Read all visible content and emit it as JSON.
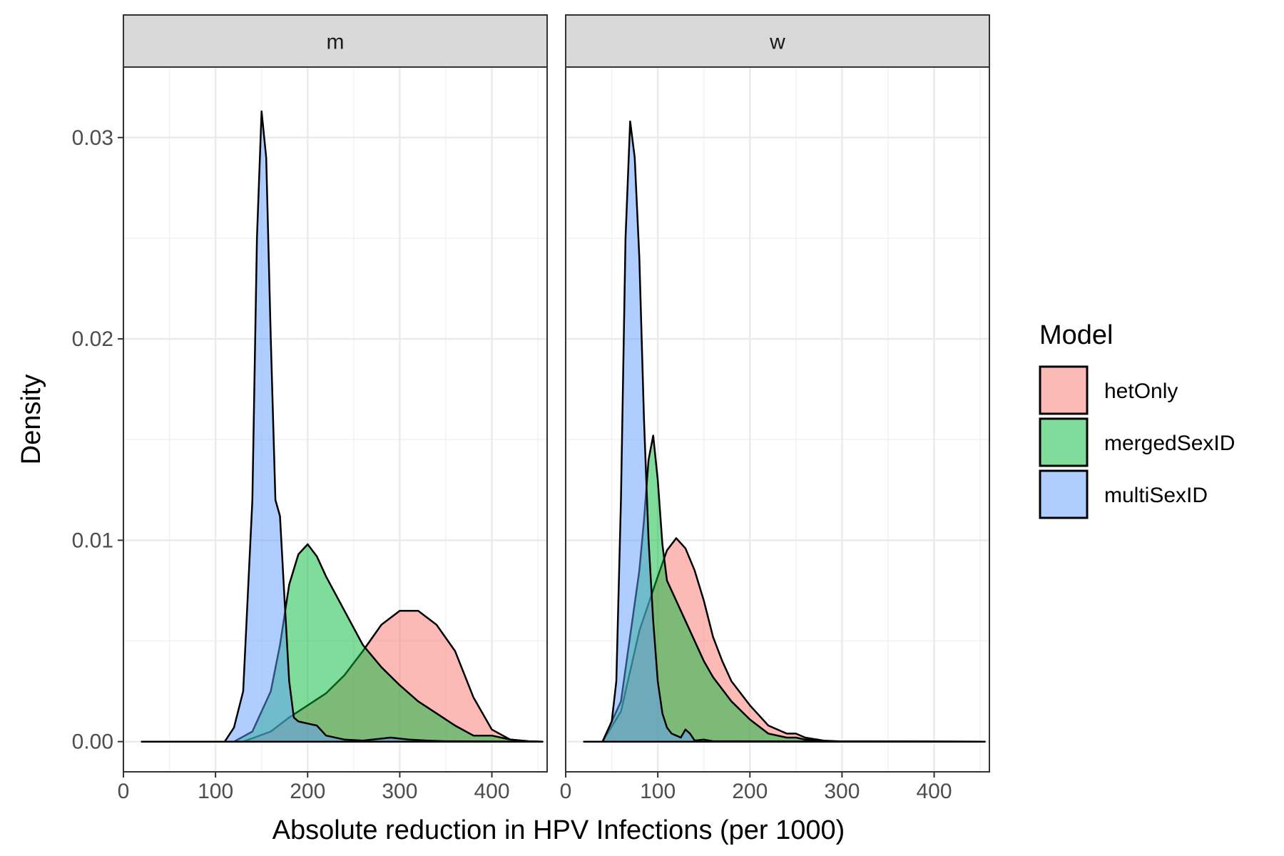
{
  "chart_data": {
    "type": "area",
    "xlabel": "Absolute reduction in HPV Infections (per 1000)",
    "ylabel": "Density",
    "xlim": [
      0,
      460
    ],
    "ylim": [
      -0.0015,
      0.0335
    ],
    "x_ticks": [
      0,
      100,
      200,
      300,
      400
    ],
    "y_ticks": [
      0.0,
      0.01,
      0.02,
      0.03
    ],
    "x_tick_labels": [
      "0",
      "100",
      "200",
      "300",
      "400"
    ],
    "y_tick_labels": [
      "0.00",
      "0.01",
      "0.02",
      "0.03"
    ],
    "grid": true,
    "legend": {
      "title": "Model",
      "position": "right"
    },
    "series_colors": {
      "hetOnly": "#F8766D",
      "mergedSexID": "#00BA38",
      "multiSexID": "#619CFF"
    },
    "fill_opacity": 0.5,
    "panels": [
      {
        "facet": "m",
        "series": [
          {
            "name": "hetOnly",
            "x": [
              20,
              130,
              160,
              180,
              200,
              220,
              240,
              260,
              280,
              300,
              320,
              340,
              360,
              380,
              400,
              420,
              440,
              455
            ],
            "y": [
              0,
              0,
              0.0005,
              0.0012,
              0.0018,
              0.0024,
              0.0033,
              0.0045,
              0.0058,
              0.0065,
              0.0065,
              0.0058,
              0.0045,
              0.0022,
              0.0006,
              0.0001,
              2e-05,
              0
            ]
          },
          {
            "name": "mergedSexID",
            "x": [
              20,
              120,
              140,
              160,
              170,
              180,
              190,
              200,
              210,
              220,
              240,
              260,
              280,
              300,
              320,
              340,
              360,
              380,
              400,
              420,
              440,
              455
            ],
            "y": [
              0,
              0,
              0.0005,
              0.0025,
              0.0048,
              0.0078,
              0.0093,
              0.0098,
              0.0092,
              0.0082,
              0.0065,
              0.0048,
              0.0037,
              0.0028,
              0.002,
              0.0014,
              0.0008,
              0.0003,
              0.0003,
              0.0001,
              2e-05,
              0
            ]
          },
          {
            "name": "multiSexID",
            "x": [
              20,
              110,
              120,
              130,
              140,
              145,
              150,
              155,
              160,
              165,
              170,
              175,
              180,
              185,
              190,
              200,
              210,
              220,
              240,
              260,
              290,
              310,
              330,
              350,
              455
            ],
            "y": [
              0,
              0,
              0.0007,
              0.0025,
              0.012,
              0.025,
              0.0313,
              0.029,
              0.02,
              0.012,
              0.0112,
              0.007,
              0.003,
              0.0012,
              0.001,
              0.0009,
              0.0008,
              0.0003,
              0.0001,
              5e-05,
              0.0002,
              0.0001,
              5e-05,
              2e-05,
              0
            ]
          }
        ]
      },
      {
        "facet": "w",
        "series": [
          {
            "name": "hetOnly",
            "x": [
              20,
              40,
              60,
              80,
              100,
              110,
              120,
              130,
              140,
              150,
              160,
              170,
              180,
              200,
              220,
              240,
              250,
              260,
              280,
              300,
              455
            ],
            "y": [
              0,
              0,
              0.0015,
              0.0055,
              0.0082,
              0.0095,
              0.0101,
              0.0096,
              0.0085,
              0.007,
              0.0052,
              0.004,
              0.003,
              0.0018,
              0.0008,
              0.0004,
              0.0004,
              0.0002,
              5e-05,
              1e-05,
              0
            ]
          },
          {
            "name": "mergedSexID",
            "x": [
              20,
              40,
              60,
              80,
              85,
              90,
              95,
              100,
              105,
              110,
              120,
              130,
              140,
              150,
              160,
              180,
              200,
              220,
              240,
              250,
              260,
              280,
              455
            ],
            "y": [
              0,
              0,
              0.002,
              0.0085,
              0.011,
              0.014,
              0.0152,
              0.013,
              0.0098,
              0.008,
              0.007,
              0.006,
              0.005,
              0.004,
              0.0032,
              0.002,
              0.0011,
              0.0004,
              0.0002,
              0.0002,
              0.0001,
              2e-05,
              0
            ]
          },
          {
            "name": "multiSexID",
            "x": [
              20,
              40,
              50,
              55,
              60,
              65,
              70,
              75,
              80,
              85,
              90,
              95,
              100,
              105,
              110,
              115,
              120,
              125,
              130,
              135,
              140,
              150,
              160,
              455
            ],
            "y": [
              0,
              0,
              0.001,
              0.003,
              0.012,
              0.025,
              0.0308,
              0.029,
              0.024,
              0.016,
              0.01,
              0.006,
              0.003,
              0.0014,
              0.0007,
              0.0004,
              0.0003,
              0.0002,
              0.0006,
              0.0004,
              5e-05,
              0.0001,
              2e-05,
              0
            ]
          }
        ]
      }
    ]
  }
}
